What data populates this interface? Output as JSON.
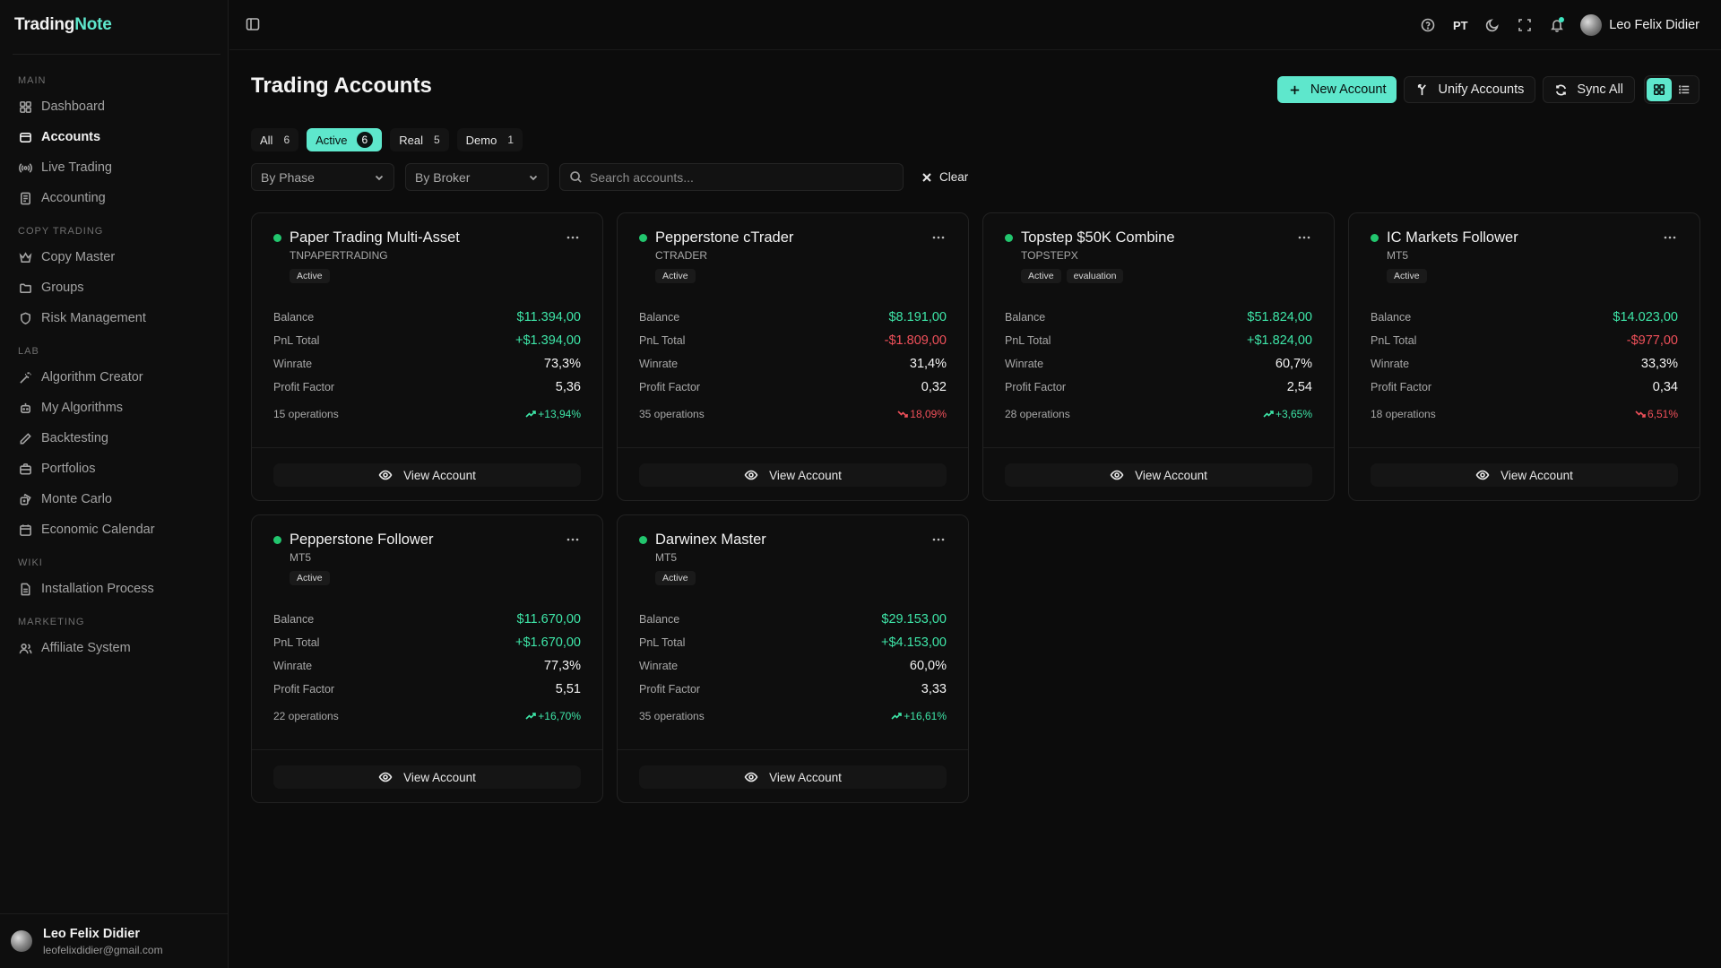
{
  "app": {
    "logo_part1": "Trading",
    "logo_part2": "Note"
  },
  "sidebar": {
    "sections": [
      {
        "title": "MAIN",
        "items": [
          {
            "label": "Dashboard",
            "icon": "dashboard-icon",
            "active": false
          },
          {
            "label": "Accounts",
            "icon": "accounts-icon",
            "active": true
          },
          {
            "label": "Live Trading",
            "icon": "live-trading-icon",
            "active": false
          },
          {
            "label": "Accounting",
            "icon": "accounting-icon",
            "active": false
          }
        ]
      },
      {
        "title": "COPY TRADING",
        "items": [
          {
            "label": "Copy Master",
            "icon": "crown-icon",
            "active": false
          },
          {
            "label": "Groups",
            "icon": "folder-icon",
            "active": false
          },
          {
            "label": "Risk Management",
            "icon": "shield-icon",
            "active": false
          }
        ]
      },
      {
        "title": "LAB",
        "items": [
          {
            "label": "Algorithm Creator",
            "icon": "wand-icon",
            "active": false
          },
          {
            "label": "My Algorithms",
            "icon": "bot-icon",
            "active": false
          },
          {
            "label": "Backtesting",
            "icon": "pencil-icon",
            "active": false
          },
          {
            "label": "Portfolios",
            "icon": "briefcase-icon",
            "active": false
          },
          {
            "label": "Monte Carlo",
            "icon": "dice-icon",
            "active": false
          },
          {
            "label": "Economic Calendar",
            "icon": "calendar-icon",
            "active": false
          }
        ]
      },
      {
        "title": "WIKI",
        "items": [
          {
            "label": "Installation Process",
            "icon": "document-icon",
            "active": false
          }
        ]
      },
      {
        "title": "MARKETING",
        "items": [
          {
            "label": "Affiliate System",
            "icon": "users-icon",
            "active": false
          }
        ]
      }
    ],
    "user": {
      "name": "Leo Felix Didier",
      "email": "leofelixdidier@gmail.com"
    }
  },
  "topbar": {
    "language": "PT",
    "user_name": "Leo Felix Didier"
  },
  "page": {
    "title": "Trading Accounts",
    "actions": {
      "new_account": "New Account",
      "unify_accounts": "Unify Accounts",
      "sync_all": "Sync All"
    },
    "tabs": [
      {
        "label": "All",
        "count": "6",
        "active": false
      },
      {
        "label": "Active",
        "count": "6",
        "active": true
      },
      {
        "label": "Real",
        "count": "5",
        "active": false
      },
      {
        "label": "Demo",
        "count": "1",
        "active": false
      }
    ],
    "filters": {
      "phase": "By Phase",
      "broker": "By Broker",
      "search_placeholder": "Search accounts...",
      "clear": "Clear"
    }
  },
  "labels": {
    "balance": "Balance",
    "pnl": "PnL Total",
    "winrate": "Winrate",
    "profit_factor": "Profit Factor",
    "view_account": "View Account"
  },
  "accounts": [
    {
      "name": "Paper Trading Multi-Asset",
      "broker": "TNPAPERTRADING",
      "badges": [
        "Active"
      ],
      "balance": "$11.394,00",
      "pnl": "+$1.394,00",
      "pnl_positive": true,
      "winrate": "73,3%",
      "profit_factor": "5,36",
      "operations": "15 operations",
      "change": "+13,94%",
      "change_positive": true
    },
    {
      "name": "Pepperstone cTrader",
      "broker": "CTRADER",
      "badges": [
        "Active"
      ],
      "balance": "$8.191,00",
      "pnl": "-$1.809,00",
      "pnl_positive": false,
      "winrate": "31,4%",
      "profit_factor": "0,32",
      "operations": "35 operations",
      "change": "18,09%",
      "change_positive": false
    },
    {
      "name": "Topstep $50K Combine",
      "broker": "TOPSTEPX",
      "badges": [
        "Active",
        "evaluation"
      ],
      "balance": "$51.824,00",
      "pnl": "+$1.824,00",
      "pnl_positive": true,
      "winrate": "60,7%",
      "profit_factor": "2,54",
      "operations": "28 operations",
      "change": "+3,65%",
      "change_positive": true
    },
    {
      "name": "IC Markets Follower",
      "broker": "MT5",
      "badges": [
        "Active"
      ],
      "balance": "$14.023,00",
      "pnl": "-$977,00",
      "pnl_positive": false,
      "winrate": "33,3%",
      "profit_factor": "0,34",
      "operations": "18 operations",
      "change": "6,51%",
      "change_positive": false
    },
    {
      "name": "Pepperstone Follower",
      "broker": "MT5",
      "badges": [
        "Active"
      ],
      "balance": "$11.670,00",
      "pnl": "+$1.670,00",
      "pnl_positive": true,
      "winrate": "77,3%",
      "profit_factor": "5,51",
      "operations": "22 operations",
      "change": "+16,70%",
      "change_positive": true
    },
    {
      "name": "Darwinex Master",
      "broker": "MT5",
      "badges": [
        "Active"
      ],
      "balance": "$29.153,00",
      "pnl": "+$4.153,00",
      "pnl_positive": true,
      "winrate": "60,0%",
      "profit_factor": "3,33",
      "operations": "35 operations",
      "change": "+16,61%",
      "change_positive": true
    }
  ],
  "colors": {
    "accent": "#5ee7cc",
    "positive": "#3ee6a8",
    "negative": "#f0505a",
    "status_active": "#22c66e"
  }
}
